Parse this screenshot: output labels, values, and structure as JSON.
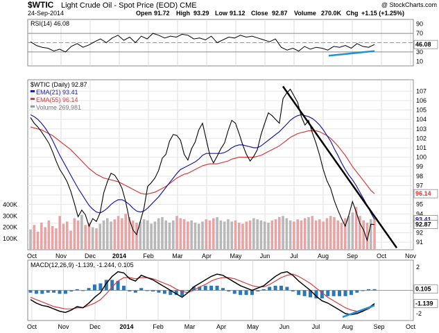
{
  "header": {
    "title": "$WTIC Light Crude Oil - Spot Price (EOD) CME",
    "symbol": "$WTIC",
    "name": "Light Crude Oil - Spot Price (EOD) CME",
    "watermark": "@ StockCharts.com",
    "date": "24-Sep-2014",
    "open_label": "Open",
    "open": "91.72",
    "high_label": "High",
    "high": "93.29",
    "low_label": "Low",
    "low": "91.12",
    "close_label": "Close",
    "close": "92.87",
    "volume_label": "Volume",
    "volume": "270.0K",
    "chg_label": "Chg",
    "chg": "+1.15 (+1.25%)"
  },
  "colors": {
    "price": "#000000",
    "ema21": "#1a1aa8",
    "ema55": "#d83a3a",
    "volume_up": "#b8b8b8",
    "volume_down": "#e8a4a4",
    "rsi": "#000000",
    "macd_line": "#000000",
    "macd_signal": "#d83a3a",
    "histogram": "#2a78b8",
    "highlight_blue": "#1e90d8",
    "trendline": "#000000"
  },
  "chart_data": [
    {
      "type": "line",
      "panel": "RSI",
      "label": "RSI(14) 46.08",
      "y_ticks": [
        "90",
        "70",
        "50",
        "30",
        "10"
      ],
      "ylim": [
        0,
        100
      ],
      "reference_lines": [
        70,
        30
      ],
      "current_value_badge": "46.08",
      "series": [
        {
          "name": "RSI(14)",
          "values": [
            52,
            44,
            40,
            38,
            32,
            36,
            30,
            42,
            48,
            40,
            45,
            52,
            58,
            50,
            60,
            66,
            55,
            62,
            50,
            64,
            58,
            70,
            66,
            60,
            64,
            62,
            68,
            66,
            58,
            60,
            56,
            64,
            50,
            56,
            62,
            60,
            66,
            62,
            64,
            60,
            56,
            52,
            58,
            40,
            34,
            38,
            32,
            42,
            36,
            40,
            38,
            34,
            42,
            40,
            44,
            38,
            48,
            42,
            40,
            46.08
          ]
        }
      ]
    },
    {
      "type": "line",
      "panel": "Price",
      "label": "$WTIC (Daily) 92.87",
      "legend": [
        "EMA(21) 93.41",
        "EMA(55) 96.14",
        "Volume 269,981"
      ],
      "x_ticks": [
        "Oct",
        "Nov",
        "Dec",
        "2014",
        "Feb",
        "Mar",
        "Apr",
        "May",
        "Jun",
        "Jul",
        "Aug",
        "Sep",
        "Oct",
        "Nov"
      ],
      "y_ticks": [
        "107",
        "106",
        "105",
        "104",
        "103",
        "102",
        "101",
        "100",
        "99",
        "98",
        "97",
        "96",
        "95",
        "94",
        "93",
        "92",
        "91"
      ],
      "ylim": [
        90.2,
        108.2
      ],
      "badges": [
        "96.14",
        "93.41",
        "92.87"
      ],
      "series": [
        {
          "name": "$WTIC",
          "values": [
            104.2,
            103.6,
            103.2,
            102.7,
            102.1,
            101.5,
            100.6,
            99.6,
            98.7,
            98.1,
            97.4,
            96.4,
            95.1,
            93.7,
            94.4,
            93.9,
            92.7,
            93.5,
            93.2,
            94.1,
            96.2,
            97.4,
            98.3,
            98.1,
            97.5,
            96.7,
            95.3,
            93.4,
            92.3,
            91.8,
            93.2,
            94.6,
            96.9,
            97.3,
            97.8,
            98.6,
            99.9,
            100.3,
            101.7,
            102.4,
            102.3,
            101.8,
            100.3,
            99.7,
            100.9,
            101.6,
            102.9,
            103.6,
            101.9,
            100.2,
            99.4,
            100.1,
            100.9,
            101.5,
            102.8,
            103.9,
            103.6,
            102.5,
            101.3,
            100.3,
            99.6,
            100.1,
            100.8,
            102.4,
            103.6,
            104.7,
            104.4,
            104.0,
            103.6,
            106.2,
            106.8,
            107.2,
            106.5,
            105.8,
            104.3,
            103.4,
            103.9,
            102.6,
            101.5,
            100.2,
            98.7,
            97.5,
            96.7,
            95.4,
            94.4,
            93.5,
            92.7,
            93.9,
            95.3,
            94.2,
            93.0,
            92.3,
            91.2,
            92.9,
            92.87
          ]
        },
        {
          "name": "EMA(21)",
          "values": [
            104.5,
            104.3,
            104.0,
            103.6,
            103.1,
            102.5,
            101.8,
            101.0,
            100.2,
            99.5,
            98.8,
            98.1,
            97.4,
            96.7,
            96.1,
            95.5,
            94.9,
            94.5,
            94.2,
            94.1,
            94.3,
            94.6,
            95.0,
            95.3,
            95.5,
            95.5,
            95.3,
            95.0,
            94.6,
            94.3,
            94.2,
            94.3,
            94.6,
            95.0,
            95.4,
            95.8,
            96.3,
            96.8,
            97.3,
            97.8,
            98.3,
            98.7,
            98.9,
            99.1,
            99.3,
            99.5,
            99.8,
            100.2,
            100.4,
            100.4,
            100.4,
            100.4,
            100.4,
            100.5,
            100.7,
            101.0,
            101.2,
            101.3,
            101.3,
            101.2,
            101.1,
            101.0,
            101.0,
            101.2,
            101.5,
            101.8,
            102.1,
            102.4,
            102.7,
            103.1,
            103.5,
            103.9,
            104.2,
            104.4,
            104.5,
            104.4,
            104.3,
            104.1,
            103.8,
            103.4,
            102.9,
            102.3,
            101.7,
            100.9,
            100.2,
            99.4,
            98.7,
            98.1,
            97.6,
            97.0,
            96.3,
            95.6,
            94.9,
            94.1,
            93.41
          ]
        },
        {
          "name": "EMA(55)",
          "values": [
            103.2,
            103.1,
            103.0,
            102.9,
            102.7,
            102.5,
            102.3,
            102.0,
            101.7,
            101.4,
            101.1,
            100.8,
            100.4,
            100.0,
            99.6,
            99.2,
            98.8,
            98.5,
            98.2,
            98.0,
            97.8,
            97.7,
            97.6,
            97.5,
            97.4,
            97.2,
            97.0,
            96.8,
            96.6,
            96.4,
            96.2,
            96.1,
            96.1,
            96.2,
            96.3,
            96.5,
            96.7,
            96.9,
            97.2,
            97.5,
            97.8,
            98.0,
            98.2,
            98.3,
            98.5,
            98.7,
            98.9,
            99.1,
            99.2,
            99.3,
            99.3,
            99.3,
            99.4,
            99.5,
            99.6,
            99.8,
            99.9,
            100.0,
            100.0,
            100.0,
            100.0,
            100.0,
            100.1,
            100.2,
            100.4,
            100.6,
            100.8,
            101.0,
            101.2,
            101.5,
            101.8,
            102.1,
            102.3,
            102.5,
            102.6,
            102.7,
            102.8,
            102.8,
            102.8,
            102.7,
            102.5,
            102.3,
            102.0,
            101.6,
            101.2,
            100.7,
            100.2,
            99.6,
            99.0,
            98.5,
            98.0,
            97.5,
            97.0,
            96.5,
            96.14
          ]
        },
        {
          "name": "Volume",
          "values": [
            180,
            220,
            160,
            240,
            200,
            260,
            210,
            190,
            300,
            230,
            250,
            170,
            280,
            260,
            310,
            220,
            240,
            200,
            190,
            230,
            260,
            280,
            250,
            270,
            300,
            280,
            320,
            290,
            260,
            240,
            250,
            270,
            260,
            230,
            250,
            280,
            290,
            260,
            240,
            260,
            300,
            280,
            270,
            250,
            260,
            240,
            230,
            250,
            270,
            260,
            280,
            290,
            260,
            250,
            270,
            250,
            260,
            240,
            230,
            250,
            260,
            280,
            270,
            260,
            250,
            240,
            260,
            270,
            290,
            300,
            280,
            260,
            250,
            270,
            260,
            280,
            290,
            300,
            260,
            270,
            250,
            280,
            300,
            290,
            260,
            240,
            280,
            300,
            330,
            380,
            300,
            260,
            240,
            270,
            270
          ]
        }
      ],
      "volume_y_ticks": [
        "400K",
        "300K",
        "200K",
        "100K"
      ],
      "annotations": [
        "downward trendline from Jun 2014 high"
      ]
    },
    {
      "type": "line",
      "panel": "MACD",
      "label": "MACD(12,26,9) -1.139, -1.244, 0.105",
      "x_ticks": [
        "Oct",
        "Nov",
        "Dec",
        "2014",
        "Feb",
        "Mar",
        "Apr",
        "May",
        "Jun",
        "Jul",
        "Aug",
        "Sep",
        "Oct"
      ],
      "y_ticks": [
        "2",
        "0",
        "-2"
      ],
      "ylim": [
        -2.6,
        2.6
      ],
      "badges": [
        "0.105",
        "-1.139"
      ],
      "series": [
        {
          "name": "MACD",
          "values": [
            -0.8,
            -1.1,
            -1.3,
            -1.4,
            -1.6,
            -1.8,
            -1.9,
            -1.7,
            -1.4,
            -1.5,
            -1.1,
            -0.6,
            -0.2,
            0.6,
            1.2,
            1.6,
            1.5,
            1.0,
            0.8,
            1.3,
            1.1,
            0.9,
            0.6,
            0.3,
            0.0,
            -0.3,
            -0.6,
            -0.2,
            0.3,
            0.6,
            0.9,
            1.2,
            1.4,
            1.3,
            1.0,
            0.7,
            0.4,
            0.2,
            0.0,
            0.2,
            0.4,
            0.8,
            1.2,
            1.5,
            1.6,
            1.3,
            0.8,
            0.4,
            0.0,
            -0.5,
            -0.9,
            -1.1,
            -1.4,
            -1.7,
            -2.0,
            -2.1,
            -2.0,
            -1.8,
            -1.5,
            -1.139
          ]
        },
        {
          "name": "Signal",
          "values": [
            -0.6,
            -0.8,
            -1.0,
            -1.2,
            -1.4,
            -1.5,
            -1.6,
            -1.6,
            -1.5,
            -1.5,
            -1.3,
            -1.1,
            -0.8,
            -0.3,
            0.3,
            0.8,
            1.1,
            1.1,
            1.0,
            1.1,
            1.1,
            1.0,
            0.8,
            0.6,
            0.4,
            0.1,
            -0.1,
            -0.2,
            0.0,
            0.3,
            0.5,
            0.8,
            1.0,
            1.1,
            1.1,
            1.0,
            0.8,
            0.6,
            0.4,
            0.3,
            0.3,
            0.5,
            0.8,
            1.1,
            1.3,
            1.4,
            1.2,
            0.9,
            0.6,
            0.2,
            -0.2,
            -0.6,
            -0.9,
            -1.2,
            -1.5,
            -1.7,
            -1.8,
            -1.8,
            -1.6,
            -1.244
          ]
        },
        {
          "name": "Histogram",
          "values": [
            -0.2,
            -0.3,
            -0.3,
            -0.2,
            -0.2,
            -0.3,
            -0.3,
            -0.1,
            0.1,
            0.0,
            0.2,
            0.5,
            0.6,
            0.9,
            0.9,
            0.8,
            0.4,
            -0.1,
            -0.2,
            0.2,
            0.0,
            -0.1,
            -0.2,
            -0.3,
            -0.4,
            -0.4,
            -0.5,
            0.0,
            0.3,
            0.3,
            0.4,
            0.4,
            0.4,
            0.2,
            -0.1,
            -0.3,
            -0.4,
            -0.4,
            -0.4,
            -0.1,
            0.1,
            0.3,
            0.4,
            0.4,
            0.3,
            -0.1,
            -0.4,
            -0.5,
            -0.6,
            -0.7,
            -0.7,
            -0.5,
            -0.5,
            -0.5,
            -0.5,
            -0.4,
            -0.2,
            0.0,
            0.1,
            0.105
          ]
        }
      ]
    }
  ]
}
